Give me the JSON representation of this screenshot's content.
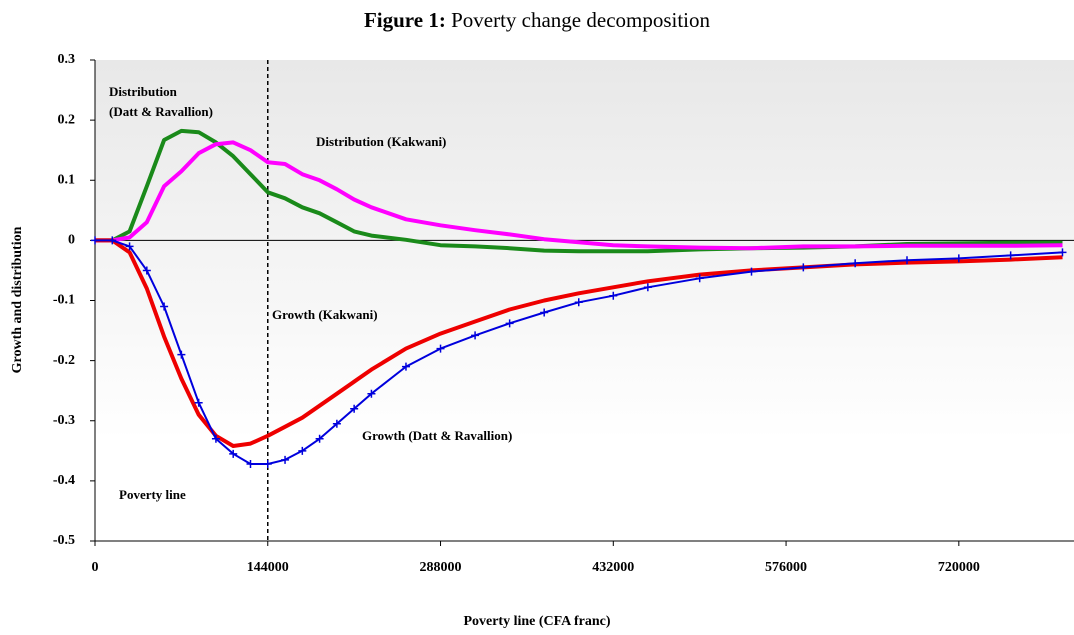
{
  "chart_data": {
    "type": "line",
    "title_label": "Figure 1:",
    "title": "Poverty change decomposition",
    "x_label": "Poverty line (CFA franc)",
    "y_label": "Growth and distribution",
    "xlim": [
      0,
      816000
    ],
    "ylim": [
      -0.5,
      0.3
    ],
    "xticks": [
      0,
      144000,
      288000,
      432000,
      576000,
      720000
    ],
    "yticks": [
      0.3,
      0.2,
      0.1,
      0,
      -0.1,
      -0.2,
      -0.3,
      -0.4,
      -0.5
    ],
    "poverty_line_x": 144000,
    "x": [
      0,
      14400,
      28800,
      43200,
      57600,
      72000,
      86400,
      100800,
      115200,
      129600,
      144000,
      158400,
      172800,
      187200,
      201600,
      216000,
      230400,
      259200,
      288000,
      316800,
      345600,
      374400,
      403200,
      432000,
      460800,
      504000,
      547200,
      590400,
      633600,
      676800,
      720000,
      763200,
      806400
    ],
    "series": [
      {
        "color": "#1a8a1a",
        "marker": false,
        "values": [
          0,
          0,
          0.015,
          0.09,
          0.167,
          0.182,
          0.18,
          0.163,
          0.14,
          0.11,
          0.08,
          0.07,
          0.055,
          0.045,
          0.03,
          0.015,
          0.008,
          0.001,
          -0.008,
          -0.01,
          -0.013,
          -0.017,
          -0.018,
          -0.018,
          -0.018,
          -0.015,
          -0.013,
          -0.012,
          -0.01,
          -0.006,
          -0.005,
          -0.004,
          -0.004
        ]
      },
      {
        "color": "#ff00ff",
        "marker": false,
        "values": [
          0,
          0,
          0.005,
          0.03,
          0.09,
          0.115,
          0.145,
          0.16,
          0.163,
          0.15,
          0.13,
          0.127,
          0.11,
          0.1,
          0.085,
          0.068,
          0.055,
          0.035,
          0.025,
          0.017,
          0.01,
          0.002,
          -0.003,
          -0.008,
          -0.01,
          -0.012,
          -0.013,
          -0.01,
          -0.01,
          -0.009,
          -0.009,
          -0.009,
          -0.008
        ]
      },
      {
        "color": "#ee0000",
        "marker": false,
        "values": [
          0,
          0,
          -0.02,
          -0.08,
          -0.16,
          -0.23,
          -0.29,
          -0.325,
          -0.342,
          -0.338,
          -0.325,
          -0.31,
          -0.295,
          -0.275,
          -0.255,
          -0.235,
          -0.215,
          -0.18,
          -0.155,
          -0.135,
          -0.115,
          -0.1,
          -0.088,
          -0.078,
          -0.068,
          -0.057,
          -0.05,
          -0.045,
          -0.04,
          -0.037,
          -0.035,
          -0.032,
          -0.028
        ]
      },
      {
        "color": "#0000dd",
        "marker": true,
        "values": [
          0,
          0,
          -0.01,
          -0.05,
          -0.11,
          -0.19,
          -0.27,
          -0.33,
          -0.355,
          -0.372,
          -0.372,
          -0.365,
          -0.35,
          -0.33,
          -0.305,
          -0.28,
          -0.255,
          -0.21,
          -0.18,
          -0.158,
          -0.138,
          -0.12,
          -0.103,
          -0.092,
          -0.078,
          -0.063,
          -0.052,
          -0.045,
          -0.038,
          -0.033,
          -0.03,
          -0.025,
          -0.02
        ]
      }
    ],
    "annotations": [
      {
        "lines": [
          "Distribution",
          "(Datt & Ravallion)"
        ]
      },
      {
        "lines": [
          "Distribution (Kakwani)"
        ]
      },
      {
        "lines": [
          "Growth (Kakwani)"
        ]
      },
      {
        "lines": [
          "Growth (Datt & Ravallion)"
        ]
      },
      {
        "lines": [
          "Poverty line"
        ]
      }
    ]
  }
}
